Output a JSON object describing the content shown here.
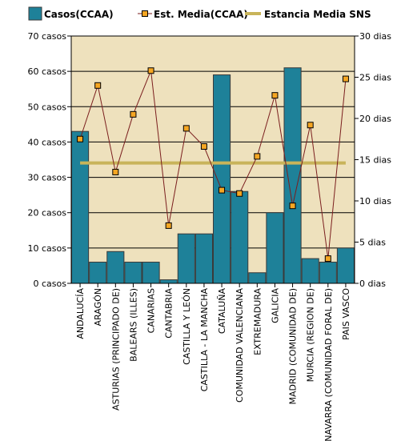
{
  "chart_data": {
    "type": "bar",
    "categories": [
      "ANDALUCÍA",
      "ARAGÓN",
      "ASTURIAS (PRINCIPADO DE)",
      "BALEARS (ILLES)",
      "CANARIAS",
      "CANTABRIA",
      "CASTILLA Y LEÓN",
      "CASTILLA - LA MANCHA",
      "CATALUÑA",
      "COMUNIDAD VALENCIANA",
      "EXTREMADURA",
      "GALICIA",
      "MADRID (COMUNIDAD DE)",
      "MURCIA (REGION DE)",
      "NAVARRA (COMUNIDAD FORAL DE)",
      "PAIS VASCO"
    ],
    "series": [
      {
        "name": "Casos(CCAA)",
        "type": "bar",
        "axis": "left",
        "color": "#1e8199",
        "values": [
          43,
          6,
          9,
          6,
          6,
          1,
          14,
          14,
          59,
          26,
          3,
          20,
          61,
          7,
          6,
          10
        ]
      },
      {
        "name": "Est. Media(CCAA)",
        "type": "line",
        "axis": "right",
        "color": "#7a1e1e",
        "marker_color": "#f5a623",
        "values": [
          17.5,
          24.0,
          13.5,
          20.5,
          25.8,
          7.0,
          18.8,
          16.6,
          11.3,
          10.9,
          15.4,
          22.8,
          9.4,
          19.2,
          3.0,
          24.8
        ]
      },
      {
        "name": "Estancia Media SNS",
        "type": "hline",
        "axis": "right",
        "color": "#c8b45a",
        "value": 14.6
      }
    ],
    "left_axis": {
      "min": 0,
      "max": 70,
      "step": 10,
      "unit": "casos"
    },
    "right_axis": {
      "min": 0,
      "max": 30,
      "step": 5,
      "unit": "dias"
    },
    "plot_background": "#eee1bd",
    "grid": true,
    "legend_position": "top"
  }
}
